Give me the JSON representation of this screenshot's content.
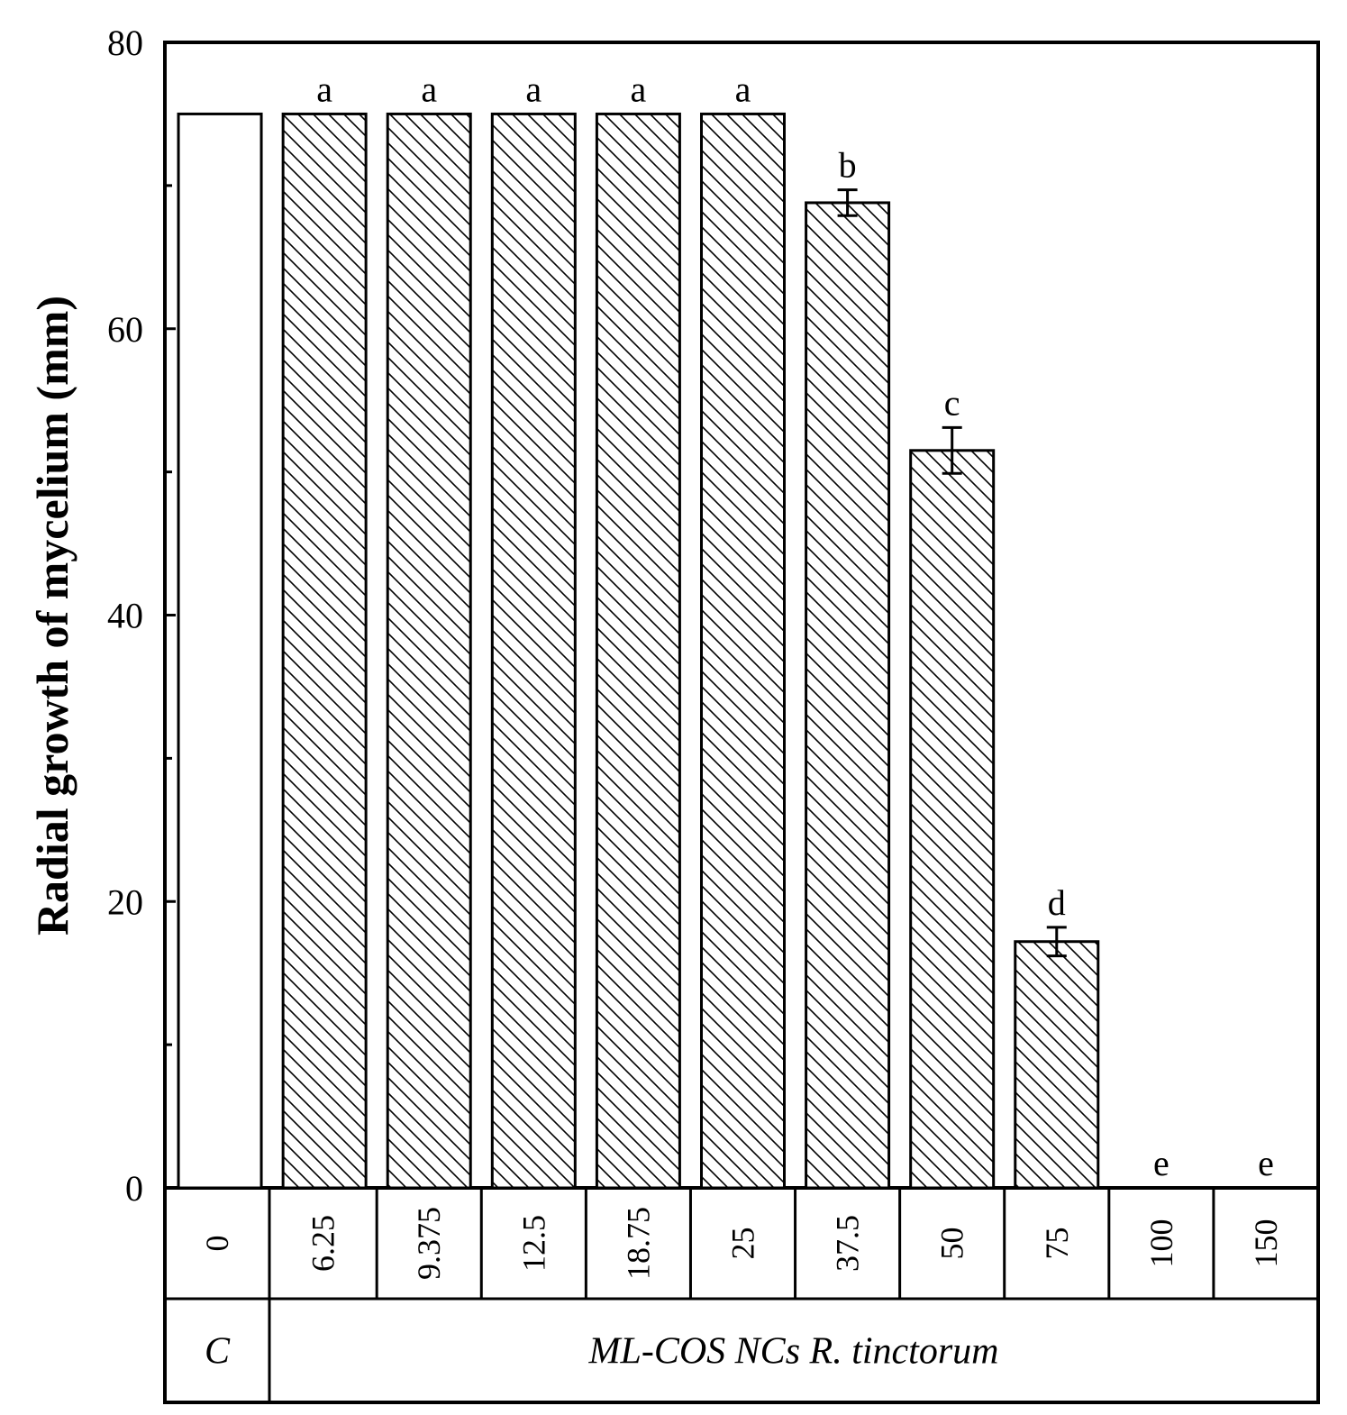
{
  "chart_data": {
    "type": "bar",
    "ylabel": "Radial growth of mycelium (mm)",
    "xlabel": "",
    "ylim": [
      0,
      80
    ],
    "yticks": [
      0,
      20,
      40,
      60,
      80
    ],
    "yminor_ticks": [
      10,
      30,
      50,
      70
    ],
    "grid": false,
    "categories": [
      "0",
      "6.25",
      "9.375",
      "12.5",
      "18.75",
      "25",
      "37.5",
      "50",
      "75",
      "100",
      "150"
    ],
    "values": [
      75,
      75,
      75,
      75,
      75,
      75,
      68.8,
      51.5,
      17.2,
      0,
      0
    ],
    "errors": [
      0,
      0,
      0,
      0,
      0,
      0,
      0.9,
      1.6,
      1.0,
      0,
      0
    ],
    "annotations": [
      "",
      "a",
      "a",
      "a",
      "a",
      "a",
      "b",
      "c",
      "d",
      "e",
      "e"
    ],
    "fill": [
      "plain",
      "hatched",
      "hatched",
      "hatched",
      "hatched",
      "hatched",
      "hatched",
      "hatched",
      "hatched",
      "hatched",
      "hatched"
    ],
    "groups": [
      {
        "label": "C",
        "span": 1
      },
      {
        "label": "ML-COS NCs R. tinctorum",
        "span": 10
      }
    ],
    "colors": {
      "bar_fill": "#ffffff",
      "hatch": "#000000",
      "stroke": "#000000"
    }
  }
}
